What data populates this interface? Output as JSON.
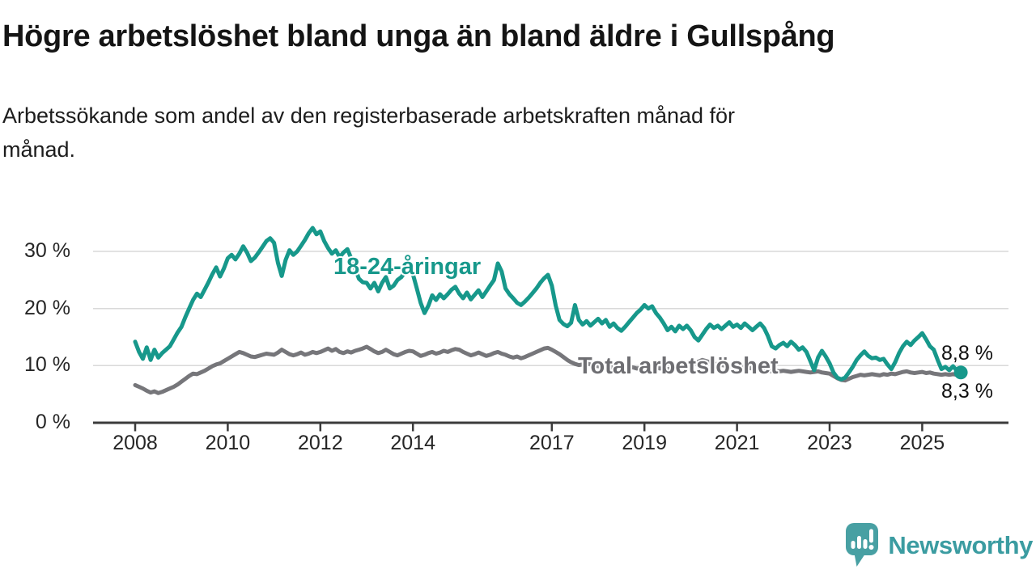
{
  "title": "Högre arbetslöshet bland unga än bland äldre i Gullspång",
  "subtitle": "Arbetssökande som andel av den registerbaserade arbetskraften månad för\nmånad.",
  "chart_data": {
    "type": "line",
    "unit": "%",
    "frequency": "monthly",
    "x_start": 2008.0,
    "points_per_year": 12,
    "xlim": [
      2007.1,
      2026.9
    ],
    "ylim": [
      0,
      36
    ],
    "grid": "horizontal-only",
    "legend": "inline-labels",
    "xticks": [
      {
        "value": 2008,
        "label": "2008"
      },
      {
        "value": 2010,
        "label": "2010"
      },
      {
        "value": 2012,
        "label": "2012"
      },
      {
        "value": 2014,
        "label": "2014"
      },
      {
        "value": 2017,
        "label": "2017"
      },
      {
        "value": 2019,
        "label": "2019"
      },
      {
        "value": 2021,
        "label": "2021"
      },
      {
        "value": 2023,
        "label": "2023"
      },
      {
        "value": 2025,
        "label": "2025"
      }
    ],
    "yticks": [
      {
        "value": 0,
        "label": "0 %"
      },
      {
        "value": 10,
        "label": "10 %"
      },
      {
        "value": 20,
        "label": "20 %"
      },
      {
        "value": 30,
        "label": "30 %"
      }
    ],
    "series": [
      {
        "name": "18-24-åringar",
        "color": "#17988b",
        "label_color": "#17988b",
        "latest_value": 8.8,
        "latest_label": "8,8 %",
        "values": [
          14.2,
          12.4,
          11.2,
          13.2,
          11.0,
          12.8,
          11.4,
          12.2,
          12.8,
          13.4,
          14.6,
          15.8,
          16.8,
          18.5,
          20.0,
          21.5,
          22.6,
          22.0,
          23.3,
          24.6,
          26.0,
          27.2,
          25.6,
          27.0,
          28.8,
          29.4,
          28.6,
          29.6,
          30.9,
          29.8,
          28.3,
          28.9,
          29.8,
          30.8,
          31.8,
          32.3,
          31.5,
          28.0,
          25.7,
          28.5,
          30.2,
          29.4,
          30.0,
          31.0,
          32.0,
          33.2,
          34.1,
          33.0,
          33.5,
          31.8,
          30.6,
          29.6,
          30.2,
          29.0,
          29.8,
          30.4,
          28.8,
          27.0,
          25.2,
          24.6,
          24.5,
          23.5,
          24.5,
          23.0,
          24.5,
          25.5,
          23.5,
          24.0,
          25.0,
          25.5,
          26.5,
          27.3,
          26.0,
          23.5,
          21.0,
          19.2,
          20.5,
          22.3,
          21.5,
          22.5,
          21.8,
          22.5,
          23.3,
          23.8,
          22.6,
          21.8,
          22.8,
          21.6,
          22.4,
          23.2,
          22.0,
          23.0,
          24.0,
          25.0,
          27.9,
          26.5,
          23.5,
          22.5,
          21.8,
          21.0,
          20.6,
          21.2,
          21.9,
          22.7,
          23.5,
          24.5,
          25.3,
          25.9,
          24.0,
          20.5,
          18.0,
          17.3,
          16.9,
          17.5,
          20.6,
          18.0,
          17.2,
          17.8,
          17.0,
          17.6,
          18.2,
          17.4,
          18.0,
          16.8,
          17.4,
          16.6,
          16.1,
          16.8,
          17.6,
          18.4,
          19.2,
          19.8,
          20.6,
          20.0,
          20.4,
          19.2,
          18.4,
          17.4,
          16.2,
          16.8,
          16.0,
          17.0,
          16.4,
          17.0,
          16.2,
          15.0,
          14.4,
          15.4,
          16.4,
          17.2,
          16.6,
          17.0,
          16.4,
          17.0,
          17.6,
          16.8,
          17.2,
          16.6,
          17.4,
          16.8,
          16.2,
          16.8,
          17.4,
          16.6,
          15.2,
          13.4,
          13.0,
          13.6,
          14.0,
          13.4,
          14.2,
          13.6,
          12.8,
          13.2,
          12.4,
          10.8,
          9.2,
          11.4,
          12.6,
          11.6,
          10.4,
          8.8,
          7.9,
          7.6,
          7.9,
          8.8,
          9.8,
          11.0,
          11.8,
          12.5,
          11.7,
          11.3,
          11.4,
          11.0,
          11.2,
          10.2,
          9.4,
          10.6,
          12.2,
          13.4,
          14.2,
          13.6,
          14.4,
          15.0,
          15.7,
          14.6,
          13.4,
          12.8,
          11.0,
          9.4,
          9.8,
          9.2,
          9.9,
          9.1,
          8.8
        ]
      },
      {
        "name": "Total arbetslöshet",
        "color": "#76767a",
        "label_color": "#6e6e72",
        "latest_value": 8.3,
        "latest_label": "8,3 %",
        "values": [
          6.6,
          6.3,
          6.0,
          5.6,
          5.3,
          5.5,
          5.2,
          5.4,
          5.7,
          6.0,
          6.3,
          6.7,
          7.2,
          7.7,
          8.2,
          8.6,
          8.5,
          8.8,
          9.1,
          9.5,
          9.9,
          10.2,
          10.4,
          10.8,
          11.2,
          11.6,
          12.0,
          12.4,
          12.2,
          11.9,
          11.6,
          11.5,
          11.7,
          11.9,
          12.1,
          12.0,
          11.9,
          12.3,
          12.8,
          12.4,
          12.0,
          11.8,
          12.0,
          12.3,
          11.9,
          12.1,
          12.4,
          12.2,
          12.4,
          12.7,
          13.0,
          12.6,
          12.9,
          12.4,
          12.2,
          12.5,
          12.3,
          12.6,
          12.8,
          13.0,
          13.3,
          12.9,
          12.5,
          12.2,
          12.4,
          12.8,
          12.4,
          12.0,
          11.8,
          12.1,
          12.4,
          12.6,
          12.5,
          12.1,
          11.7,
          11.9,
          12.2,
          12.4,
          12.1,
          12.3,
          12.6,
          12.4,
          12.7,
          12.9,
          12.8,
          12.4,
          12.1,
          11.8,
          12.0,
          12.3,
          12.0,
          11.7,
          11.9,
          12.2,
          12.4,
          12.1,
          11.9,
          11.6,
          11.4,
          11.6,
          11.3,
          11.5,
          11.8,
          12.1,
          12.4,
          12.7,
          13.0,
          13.1,
          12.8,
          12.4,
          12.0,
          11.5,
          11.0,
          10.6,
          10.3,
          10.1,
          10.2,
          10.4,
          10.2,
          10.0,
          9.9,
          9.8,
          10.0,
          9.8,
          9.6,
          9.7,
          9.5,
          9.6,
          9.8,
          9.7,
          9.5,
          9.6,
          9.7,
          9.8,
          9.9,
          9.7,
          9.5,
          9.6,
          9.4,
          9.5,
          9.6,
          9.8,
          9.9,
          10.0,
          10.2,
          10.4,
          10.7,
          11.0,
          10.8,
          10.6,
          10.4,
          10.2,
          10.1,
          10.0,
          9.9,
          9.9,
          10.0,
          9.9,
          9.8,
          9.6,
          9.5,
          9.4,
          9.3,
          9.2,
          9.1,
          9.0,
          9.1,
          9.0,
          9.1,
          9.0,
          8.9,
          9.0,
          9.1,
          9.0,
          8.9,
          8.8,
          8.9,
          9.0,
          8.8,
          8.7,
          8.6,
          8.2,
          7.8,
          7.5,
          7.4,
          7.7,
          8.0,
          8.2,
          8.4,
          8.3,
          8.4,
          8.5,
          8.4,
          8.3,
          8.5,
          8.4,
          8.6,
          8.5,
          8.7,
          8.9,
          9.0,
          8.8,
          8.7,
          8.8,
          8.9,
          8.7,
          8.8,
          8.6,
          8.5,
          8.4,
          8.5,
          8.4,
          8.5,
          8.4,
          8.3
        ]
      }
    ]
  },
  "branding": {
    "logo_text": "Newsworthy",
    "logo_text_color": "#3b9ca1",
    "logo_mark_color": "#48a0a3"
  }
}
